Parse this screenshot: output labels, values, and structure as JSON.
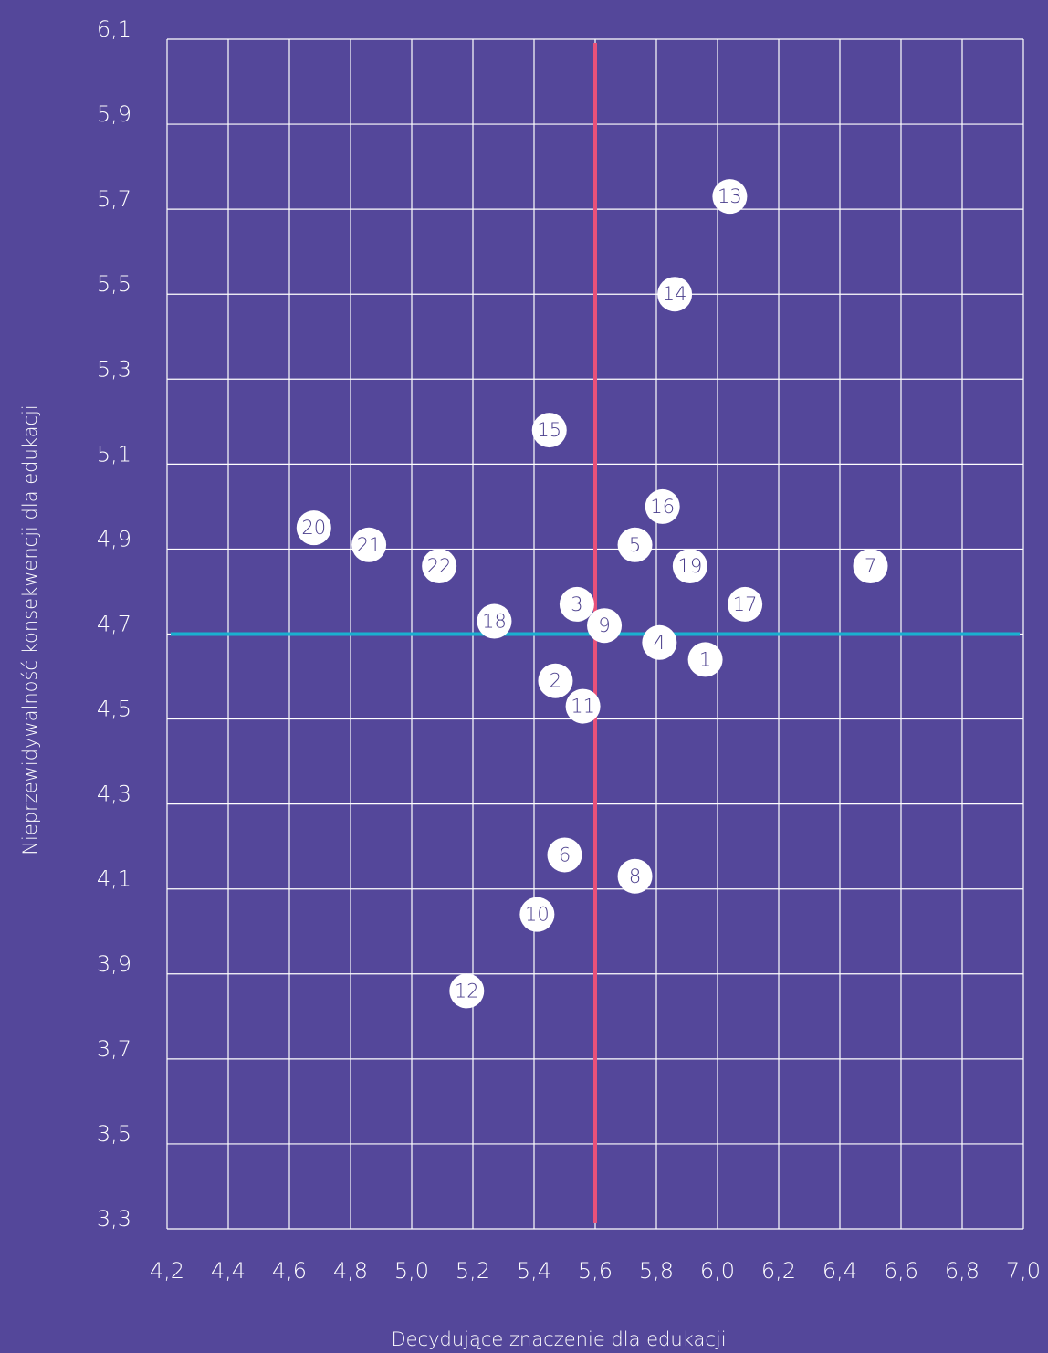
{
  "chart_data": {
    "type": "scatter",
    "x_label": "Decydujące znaczenie dla edukacji",
    "y_label": "Nieprzewidywalność konsekwencji dla edukacji",
    "point_labels": [
      "1",
      "2",
      "3",
      "4",
      "5",
      "6",
      "7",
      "8",
      "9",
      "10",
      "11",
      "12",
      "13",
      "14",
      "15",
      "16",
      "17",
      "18",
      "19",
      "20",
      "21",
      "22"
    ],
    "x": [
      5.96,
      5.47,
      5.54,
      5.81,
      5.73,
      5.5,
      6.5,
      5.73,
      5.63,
      5.41,
      5.56,
      5.18,
      6.04,
      5.86,
      5.45,
      5.82,
      6.09,
      5.27,
      5.91,
      4.68,
      4.86,
      5.09
    ],
    "values": [
      4.64,
      4.59,
      4.77,
      4.68,
      4.91,
      4.18,
      4.86,
      4.13,
      4.72,
      4.04,
      4.53,
      3.86,
      5.73,
      5.5,
      5.18,
      5.0,
      4.77,
      4.73,
      4.86,
      4.95,
      4.91,
      4.86
    ],
    "color": "#ffffff",
    "xlim": [
      4.2,
      7.0
    ],
    "ylim": [
      3.3,
      6.1
    ],
    "xticks": [
      {
        "value": 4.2,
        "label": "4,2"
      },
      {
        "value": 4.4,
        "label": "4,4"
      },
      {
        "value": 4.6,
        "label": "4,6"
      },
      {
        "value": 4.8,
        "label": "4,8"
      },
      {
        "value": 5.0,
        "label": "5,0"
      },
      {
        "value": 5.2,
        "label": "5,2"
      },
      {
        "value": 5.4,
        "label": "5,4"
      },
      {
        "value": 5.6,
        "label": "5,6"
      },
      {
        "value": 5.8,
        "label": "5,8"
      },
      {
        "value": 6.0,
        "label": "6,0"
      },
      {
        "value": 6.2,
        "label": "6,2"
      },
      {
        "value": 6.4,
        "label": "6,4"
      },
      {
        "value": 6.6,
        "label": "6,6"
      },
      {
        "value": 6.8,
        "label": "6,8"
      },
      {
        "value": 7.0,
        "label": "7,0"
      }
    ],
    "yticks": [
      {
        "value": 3.3,
        "label": "3,3"
      },
      {
        "value": 3.5,
        "label": "3,5"
      },
      {
        "value": 3.7,
        "label": "3,7"
      },
      {
        "value": 3.9,
        "label": "3,9"
      },
      {
        "value": 4.1,
        "label": "4,1"
      },
      {
        "value": 4.3,
        "label": "4,3"
      },
      {
        "value": 4.5,
        "label": "4,5"
      },
      {
        "value": 4.7,
        "label": "4,7"
      },
      {
        "value": 4.9,
        "label": "4,9"
      },
      {
        "value": 5.1,
        "label": "5,1"
      },
      {
        "value": 5.3,
        "label": "5,3"
      },
      {
        "value": 5.5,
        "label": "5,5"
      },
      {
        "value": 5.7,
        "label": "5,7"
      },
      {
        "value": 5.9,
        "label": "5,9"
      },
      {
        "value": 6.1,
        "label": "6,1"
      }
    ],
    "grid": true,
    "reference_lines": {
      "x": 5.6,
      "x_color": "#e8517a",
      "y": 4.7,
      "y_color": "#1ab0d0"
    }
  }
}
